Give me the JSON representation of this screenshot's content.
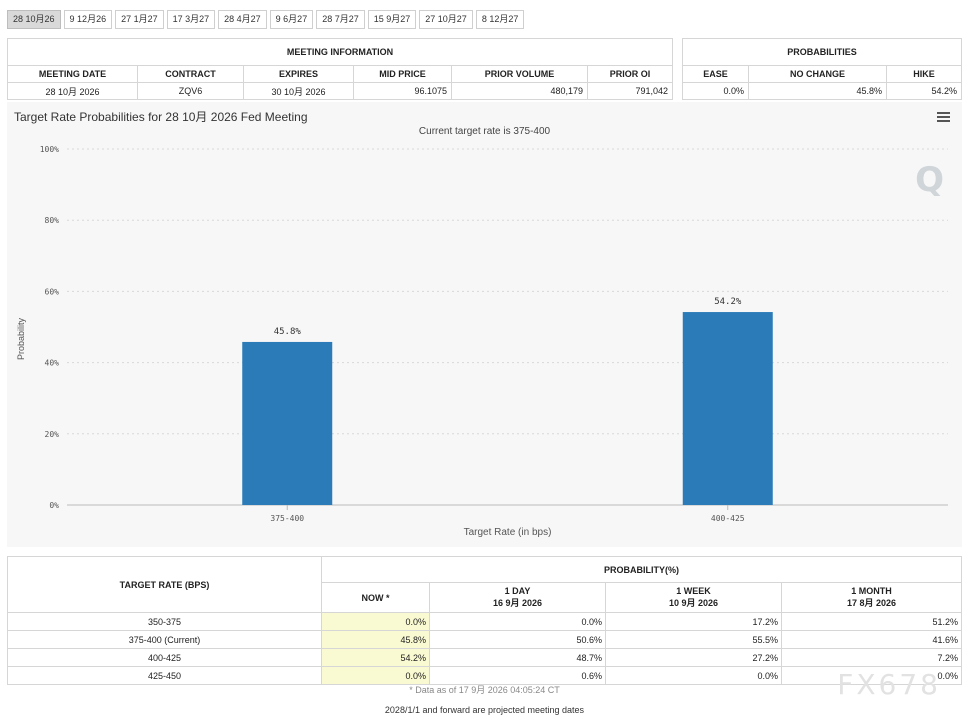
{
  "tabs": [
    "28 10月26",
    "9 12月26",
    "27 1月27",
    "17 3月27",
    "28 4月27",
    "9 6月27",
    "28 7月27",
    "15 9月27",
    "27 10月27",
    "8 12月27"
  ],
  "meeting_info": {
    "title": "MEETING INFORMATION",
    "headers": [
      "MEETING DATE",
      "CONTRACT",
      "EXPIRES",
      "MID PRICE",
      "PRIOR VOLUME",
      "PRIOR OI"
    ],
    "values": [
      "28 10月 2026",
      "ZQV6",
      "30 10月 2026",
      "96.1075",
      "480,179",
      "791,042"
    ]
  },
  "probabilities": {
    "title": "PROBABILITIES",
    "headers": [
      "EASE",
      "NO CHANGE",
      "HIKE"
    ],
    "values": [
      "0.0%",
      "45.8%",
      "54.2%"
    ]
  },
  "chart": {
    "title": "Target Rate Probabilities for 28 10月 2026 Fed Meeting",
    "subtitle": "Current target rate is 375-400",
    "bar_color": "#2b7bb9"
  },
  "chart_data": {
    "type": "bar",
    "title": "Target Rate Probabilities for 28 10月 2026 Fed Meeting",
    "subtitle": "Current target rate is 375-400",
    "categories": [
      "375-400",
      "400-425"
    ],
    "values": [
      45.8,
      54.2
    ],
    "data_labels": [
      "45.8%",
      "54.2%"
    ],
    "xlabel": "Target Rate (in bps)",
    "ylabel": "Probability",
    "ylim": [
      0,
      100
    ],
    "yticks": [
      0,
      20,
      40,
      60,
      80,
      100
    ],
    "ytick_labels": [
      "0%",
      "20%",
      "40%",
      "60%",
      "80%",
      "100%"
    ],
    "grid": true,
    "legend": "none"
  },
  "prob_table": {
    "col_target": "TARGET RATE (BPS)",
    "col_group": "PROBABILITY(%)",
    "col_now": "NOW *",
    "col_1day": "1 DAY",
    "col_1day_date": "16 9月 2026",
    "col_1week": "1 WEEK",
    "col_1week_date": "10 9月 2026",
    "col_1month": "1 MONTH",
    "col_1month_date": "17 8月 2026",
    "rows": [
      {
        "rate": "350-375",
        "now": "0.0%",
        "day": "0.0%",
        "week": "17.2%",
        "month": "51.2%"
      },
      {
        "rate": "375-400 (Current)",
        "now": "45.8%",
        "day": "50.6%",
        "week": "55.5%",
        "month": "41.6%"
      },
      {
        "rate": "400-425",
        "now": "54.2%",
        "day": "48.7%",
        "week": "27.2%",
        "month": "7.2%"
      },
      {
        "rate": "425-450",
        "now": "0.0%",
        "day": "0.6%",
        "week": "0.0%",
        "month": "0.0%"
      }
    ]
  },
  "asof": "* Data as of 17 9月 2026 04:05:24 CT",
  "footnote": "2028/1/1 and forward are projected meeting dates",
  "watermark": "FX678",
  "q_logo": "Q"
}
